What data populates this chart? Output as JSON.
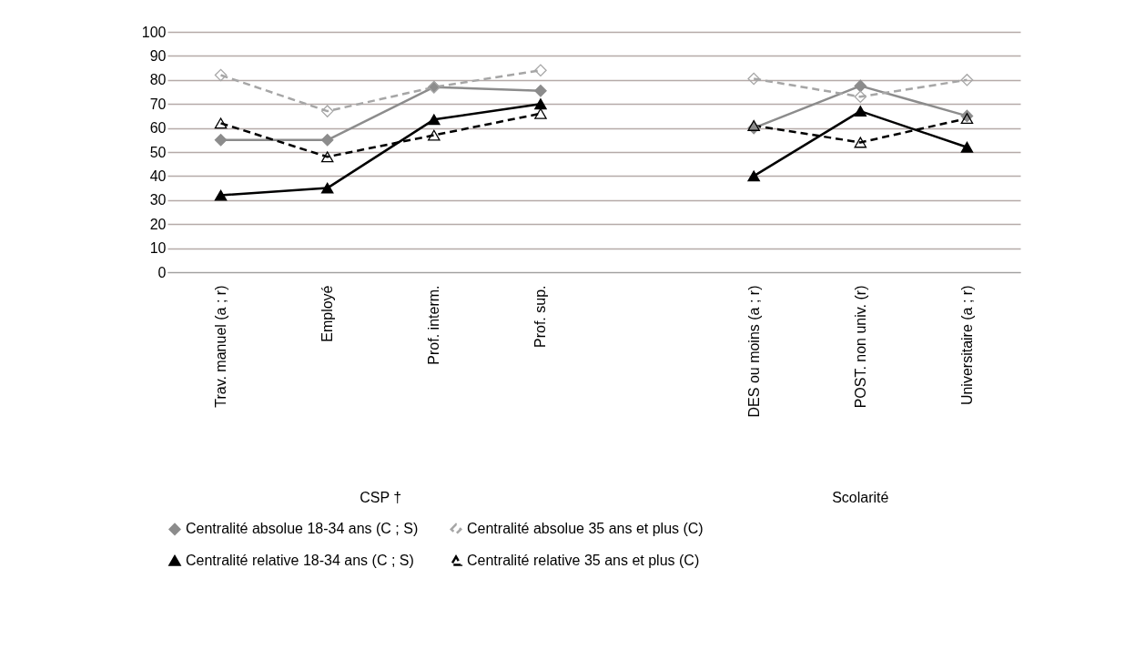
{
  "chart_data": {
    "type": "line",
    "categories": [
      "Trav. manuel (a ; r)",
      "Employé",
      "Prof. interm.",
      "Prof. sup.",
      null,
      "DES ou moins (a ; r)",
      "POST. non univ. (r)",
      "Universitaire (a ; r)"
    ],
    "series": [
      {
        "name": "Centralité absolue 18-34 ans (C ; S)",
        "color": "#8c8c8c",
        "marker": "diamond",
        "line_style": "solid",
        "values": [
          55,
          55,
          77,
          75.5,
          null,
          60,
          77.5,
          65
        ]
      },
      {
        "name": "Centralité absolue 35 ans et plus (C)",
        "color": "#a6a6a6",
        "marker": "diamond",
        "line_style": "dashed",
        "values": [
          82,
          67,
          77,
          84,
          null,
          80.5,
          73,
          80
        ]
      },
      {
        "name": "Centralité relative 18-34 ans (C ; S)",
        "color": "#000000",
        "marker": "triangle",
        "line_style": "solid",
        "values": [
          32,
          35,
          63.5,
          70,
          null,
          40,
          67,
          52
        ]
      },
      {
        "name": "Centralité relative 35 ans et plus (C)",
        "color": "#000000",
        "marker": "triangle",
        "line_style": "dashed",
        "values": [
          62,
          48,
          57,
          66,
          null,
          61,
          54,
          64
        ]
      }
    ],
    "ylim": [
      0,
      100
    ],
    "yticks": [
      0,
      10,
      20,
      30,
      40,
      50,
      60,
      70,
      80,
      90,
      100
    ],
    "grid": "y",
    "legend": "bottom",
    "annotations": [
      "CSP †",
      "Scolarité"
    ]
  }
}
